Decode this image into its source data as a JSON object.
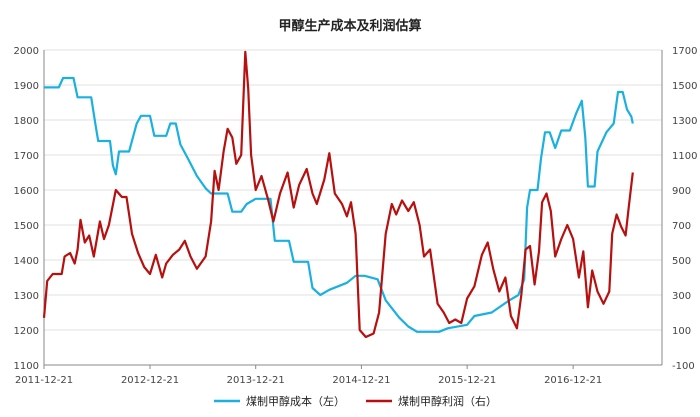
{
  "chart_data": {
    "type": "line",
    "title": "甲醇生产成本及利润估算",
    "x_tick_labels": [
      "2011-12-21",
      "2012-12-21",
      "2013-12-21",
      "2014-12-21",
      "2015-12-21",
      "2016-12-21"
    ],
    "y_left": {
      "min": 1100,
      "max": 2000,
      "step": 100,
      "ticks": [
        "1100",
        "1200",
        "1300",
        "1400",
        "1500",
        "1600",
        "1700",
        "1800",
        "1900",
        "2000"
      ]
    },
    "y_right": {
      "min": -100,
      "max": 1700,
      "step": 200,
      "ticks": [
        "-100",
        "100",
        "300",
        "500",
        "700",
        "900",
        "1100",
        "1300",
        "1500",
        "1700"
      ]
    },
    "grid": true,
    "legend_position": "bottom-center",
    "series": [
      {
        "name": "煤制甲醇成本（左）",
        "axis": "left",
        "color": "#1ab0e0",
        "points": [
          [
            "2011-12-21",
            1893
          ],
          [
            "2012-02-10",
            1893
          ],
          [
            "2012-02-25",
            1920
          ],
          [
            "2012-04-01",
            1920
          ],
          [
            "2012-04-15",
            1865
          ],
          [
            "2012-06-01",
            1865
          ],
          [
            "2012-06-15",
            1790
          ],
          [
            "2012-06-25",
            1740
          ],
          [
            "2012-08-05",
            1740
          ],
          [
            "2012-08-15",
            1670
          ],
          [
            "2012-08-25",
            1645
          ],
          [
            "2012-09-05",
            1710
          ],
          [
            "2012-10-10",
            1710
          ],
          [
            "2012-11-05",
            1790
          ],
          [
            "2012-11-20",
            1812
          ],
          [
            "2012-12-21",
            1812
          ],
          [
            "2013-01-05",
            1755
          ],
          [
            "2013-02-15",
            1755
          ],
          [
            "2013-03-01",
            1790
          ],
          [
            "2013-03-20",
            1790
          ],
          [
            "2013-04-05",
            1730
          ],
          [
            "2013-05-01",
            1690
          ],
          [
            "2013-06-01",
            1640
          ],
          [
            "2013-07-01",
            1605
          ],
          [
            "2013-07-20",
            1590
          ],
          [
            "2013-09-15",
            1590
          ],
          [
            "2013-10-01",
            1538
          ],
          [
            "2013-11-01",
            1538
          ],
          [
            "2013-11-20",
            1560
          ],
          [
            "2013-12-21",
            1575
          ],
          [
            "2014-02-10",
            1575
          ],
          [
            "2014-02-25",
            1455
          ],
          [
            "2014-04-15",
            1455
          ],
          [
            "2014-05-01",
            1395
          ],
          [
            "2014-06-20",
            1395
          ],
          [
            "2014-07-05",
            1320
          ],
          [
            "2014-08-01",
            1300
          ],
          [
            "2014-09-01",
            1315
          ],
          [
            "2014-11-01",
            1335
          ],
          [
            "2014-12-01",
            1355
          ],
          [
            "2015-01-01",
            1355
          ],
          [
            "2015-02-15",
            1345
          ],
          [
            "2015-03-15",
            1285
          ],
          [
            "2015-05-01",
            1235
          ],
          [
            "2015-06-01",
            1210
          ],
          [
            "2015-07-01",
            1195
          ],
          [
            "2015-09-15",
            1195
          ],
          [
            "2015-10-15",
            1205
          ],
          [
            "2015-12-21",
            1215
          ],
          [
            "2016-01-15",
            1240
          ],
          [
            "2016-03-15",
            1250
          ],
          [
            "2016-05-15",
            1285
          ],
          [
            "2016-06-15",
            1300
          ],
          [
            "2016-07-05",
            1345
          ],
          [
            "2016-07-15",
            1550
          ],
          [
            "2016-07-25",
            1600
          ],
          [
            "2016-08-20",
            1600
          ],
          [
            "2016-09-01",
            1690
          ],
          [
            "2016-09-15",
            1765
          ],
          [
            "2016-10-01",
            1765
          ],
          [
            "2016-10-20",
            1720
          ],
          [
            "2016-11-10",
            1770
          ],
          [
            "2016-12-10",
            1770
          ],
          [
            "2017-01-01",
            1820
          ],
          [
            "2017-01-20",
            1855
          ],
          [
            "2017-02-01",
            1750
          ],
          [
            "2017-02-10",
            1610
          ],
          [
            "2017-03-05",
            1610
          ],
          [
            "2017-03-15",
            1710
          ],
          [
            "2017-04-15",
            1765
          ],
          [
            "2017-05-10",
            1790
          ],
          [
            "2017-05-25",
            1880
          ],
          [
            "2017-06-10",
            1880
          ],
          [
            "2017-06-25",
            1830
          ],
          [
            "2017-07-10",
            1810
          ],
          [
            "2017-07-15",
            1790
          ]
        ]
      },
      {
        "name": "煤制甲醇利润（右）",
        "axis": "right",
        "color": "#b80f0f",
        "points": [
          [
            "2011-12-21",
            170
          ],
          [
            "2012-01-01",
            380
          ],
          [
            "2012-01-20",
            420
          ],
          [
            "2012-02-20",
            420
          ],
          [
            "2012-03-01",
            520
          ],
          [
            "2012-03-20",
            540
          ],
          [
            "2012-04-05",
            480
          ],
          [
            "2012-04-15",
            560
          ],
          [
            "2012-04-25",
            730
          ],
          [
            "2012-05-10",
            600
          ],
          [
            "2012-05-25",
            640
          ],
          [
            "2012-06-10",
            520
          ],
          [
            "2012-07-01",
            720
          ],
          [
            "2012-07-15",
            620
          ],
          [
            "2012-08-01",
            700
          ],
          [
            "2012-08-25",
            900
          ],
          [
            "2012-09-15",
            860
          ],
          [
            "2012-10-01",
            860
          ],
          [
            "2012-10-20",
            650
          ],
          [
            "2012-11-10",
            540
          ],
          [
            "2012-12-01",
            460
          ],
          [
            "2012-12-21",
            420
          ],
          [
            "2013-01-10",
            530
          ],
          [
            "2013-02-01",
            400
          ],
          [
            "2013-02-15",
            480
          ],
          [
            "2013-03-10",
            530
          ],
          [
            "2013-04-01",
            560
          ],
          [
            "2013-04-20",
            610
          ],
          [
            "2013-05-10",
            520
          ],
          [
            "2013-06-01",
            450
          ],
          [
            "2013-07-01",
            520
          ],
          [
            "2013-07-20",
            720
          ],
          [
            "2013-08-01",
            1010
          ],
          [
            "2013-08-15",
            900
          ],
          [
            "2013-09-01",
            1120
          ],
          [
            "2013-09-15",
            1250
          ],
          [
            "2013-10-01",
            1200
          ],
          [
            "2013-10-15",
            1050
          ],
          [
            "2013-11-01",
            1100
          ],
          [
            "2013-11-15",
            1690
          ],
          [
            "2013-11-25",
            1480
          ],
          [
            "2013-12-05",
            1100
          ],
          [
            "2013-12-21",
            900
          ],
          [
            "2014-01-10",
            980
          ],
          [
            "2014-02-01",
            850
          ],
          [
            "2014-02-20",
            720
          ],
          [
            "2014-03-15",
            880
          ],
          [
            "2014-04-10",
            1000
          ],
          [
            "2014-05-01",
            800
          ],
          [
            "2014-05-20",
            930
          ],
          [
            "2014-06-15",
            1020
          ],
          [
            "2014-07-05",
            880
          ],
          [
            "2014-07-20",
            820
          ],
          [
            "2014-08-15",
            960
          ],
          [
            "2014-09-01",
            1110
          ],
          [
            "2014-09-20",
            880
          ],
          [
            "2014-10-15",
            820
          ],
          [
            "2014-11-01",
            750
          ],
          [
            "2014-11-15",
            830
          ],
          [
            "2014-12-01",
            650
          ],
          [
            "2014-12-15",
            100
          ],
          [
            "2015-01-05",
            60
          ],
          [
            "2015-02-01",
            80
          ],
          [
            "2015-02-20",
            200
          ],
          [
            "2015-03-15",
            650
          ],
          [
            "2015-04-05",
            820
          ],
          [
            "2015-04-20",
            760
          ],
          [
            "2015-05-10",
            840
          ],
          [
            "2015-06-01",
            780
          ],
          [
            "2015-06-20",
            830
          ],
          [
            "2015-07-10",
            700
          ],
          [
            "2015-07-25",
            520
          ],
          [
            "2015-08-15",
            560
          ],
          [
            "2015-09-10",
            250
          ],
          [
            "2015-10-01",
            200
          ],
          [
            "2015-10-20",
            140
          ],
          [
            "2015-11-10",
            160
          ],
          [
            "2015-12-01",
            140
          ],
          [
            "2015-12-21",
            280
          ],
          [
            "2016-01-15",
            350
          ],
          [
            "2016-02-10",
            530
          ],
          [
            "2016-03-01",
            600
          ],
          [
            "2016-03-20",
            450
          ],
          [
            "2016-04-10",
            320
          ],
          [
            "2016-05-01",
            400
          ],
          [
            "2016-05-20",
            180
          ],
          [
            "2016-06-10",
            110
          ],
          [
            "2016-06-25",
            300
          ],
          [
            "2016-07-10",
            560
          ],
          [
            "2016-07-25",
            580
          ],
          [
            "2016-08-10",
            360
          ],
          [
            "2016-08-25",
            550
          ],
          [
            "2016-09-05",
            830
          ],
          [
            "2016-09-20",
            880
          ],
          [
            "2016-10-05",
            780
          ],
          [
            "2016-10-20",
            520
          ],
          [
            "2016-11-10",
            620
          ],
          [
            "2016-12-01",
            700
          ],
          [
            "2016-12-21",
            620
          ],
          [
            "2017-01-10",
            400
          ],
          [
            "2017-01-25",
            550
          ],
          [
            "2017-02-10",
            230
          ],
          [
            "2017-02-25",
            440
          ],
          [
            "2017-03-15",
            320
          ],
          [
            "2017-04-05",
            250
          ],
          [
            "2017-04-25",
            320
          ],
          [
            "2017-05-05",
            650
          ],
          [
            "2017-05-20",
            760
          ],
          [
            "2017-06-05",
            690
          ],
          [
            "2017-06-20",
            640
          ],
          [
            "2017-07-01",
            800
          ],
          [
            "2017-07-15",
            1000
          ]
        ]
      }
    ]
  }
}
